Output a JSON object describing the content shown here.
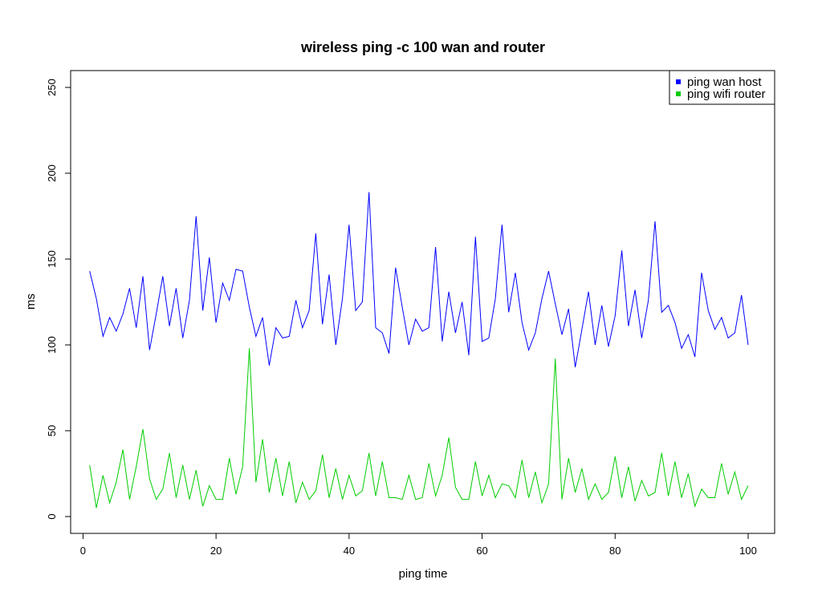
{
  "chart_data": {
    "type": "line",
    "title": "wireless ping -c 100 wan and router",
    "xlabel": "ping time",
    "ylabel": "ms",
    "xlim": [
      1,
      100
    ],
    "ylim": [
      0,
      250
    ],
    "xticks": [
      0,
      20,
      40,
      60,
      80,
      100
    ],
    "yticks": [
      0,
      50,
      100,
      150,
      200,
      250
    ],
    "grid": false,
    "legend_position": "top-right",
    "series": [
      {
        "name": "ping wan host",
        "color": "#0000ff",
        "values": [
          143,
          127,
          105,
          116,
          108,
          118,
          133,
          110,
          140,
          97,
          118,
          140,
          111,
          133,
          104,
          126,
          175,
          120,
          151,
          113,
          136,
          126,
          144,
          143,
          122,
          105,
          116,
          88,
          110,
          104,
          105,
          126,
          110,
          120,
          165,
          112,
          141,
          100,
          127,
          170,
          120,
          125,
          189,
          110,
          107,
          95,
          145,
          122,
          100,
          115,
          108,
          110,
          157,
          102,
          131,
          107,
          125,
          94,
          163,
          102,
          104,
          127,
          170,
          119,
          142,
          113,
          97,
          107,
          127,
          143,
          124,
          106,
          121,
          87,
          109,
          131,
          100,
          123,
          99,
          117,
          155,
          111,
          132,
          104,
          126,
          172,
          119,
          123,
          113,
          98,
          106,
          93,
          142,
          120,
          109,
          116,
          104,
          107,
          129,
          100
        ]
      },
      {
        "name": "ping wifi router",
        "color": "#00cd00",
        "values": [
          30,
          5,
          24,
          8,
          20,
          39,
          10,
          29,
          51,
          22,
          10,
          16,
          37,
          11,
          30,
          10,
          27,
          6,
          18,
          10,
          10,
          34,
          13,
          29,
          98,
          20,
          45,
          14,
          34,
          12,
          32,
          8,
          20,
          10,
          15,
          36,
          11,
          28,
          10,
          24,
          12,
          15,
          37,
          12,
          32,
          11,
          11,
          10,
          24,
          10,
          11,
          31,
          12,
          24,
          46,
          17,
          10,
          10,
          32,
          12,
          24,
          11,
          19,
          18,
          11,
          33,
          11,
          26,
          8,
          19,
          92,
          10,
          34,
          14,
          28,
          10,
          19,
          10,
          14,
          35,
          11,
          29,
          9,
          21,
          12,
          14,
          37,
          12,
          32,
          11,
          25,
          6,
          16,
          11,
          11,
          31,
          13,
          26,
          10,
          18
        ]
      }
    ]
  }
}
